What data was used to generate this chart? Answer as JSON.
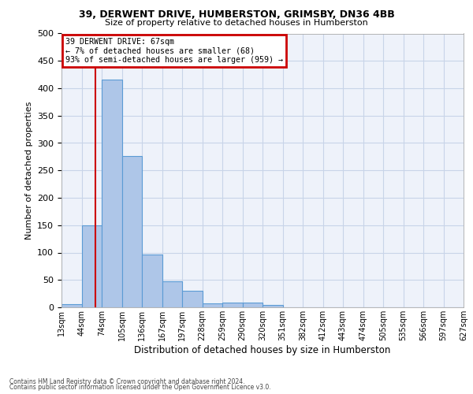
{
  "title1": "39, DERWENT DRIVE, HUMBERSTON, GRIMSBY, DN36 4BB",
  "title2": "Size of property relative to detached houses in Humberston",
  "xlabel": "Distribution of detached houses by size in Humberston",
  "ylabel": "Number of detached properties",
  "bin_labels": [
    "13sqm",
    "44sqm",
    "74sqm",
    "105sqm",
    "136sqm",
    "167sqm",
    "197sqm",
    "228sqm",
    "259sqm",
    "290sqm",
    "320sqm",
    "351sqm",
    "382sqm",
    "412sqm",
    "443sqm",
    "474sqm",
    "505sqm",
    "535sqm",
    "566sqm",
    "597sqm",
    "627sqm"
  ],
  "bar_heights": [
    6,
    149,
    416,
    276,
    96,
    48,
    30,
    7,
    9,
    8,
    5,
    0,
    0,
    0,
    0,
    0,
    0,
    0,
    0,
    0
  ],
  "bar_color": "#aec6e8",
  "bar_edgecolor": "#5b9bd5",
  "subject_line_bin": 1.67,
  "subject_line_color": "#cc0000",
  "annotation_text": "39 DERWENT DRIVE: 67sqm\n← 7% of detached houses are smaller (68)\n93% of semi-detached houses are larger (959) →",
  "annotation_box_color": "#cc0000",
  "ylim": [
    0,
    500
  ],
  "yticks": [
    0,
    50,
    100,
    150,
    200,
    250,
    300,
    350,
    400,
    450,
    500
  ],
  "grid_color": "#c8d4e8",
  "bg_color": "#eef2fa",
  "footnote1": "Contains HM Land Registry data © Crown copyright and database right 2024.",
  "footnote2": "Contains public sector information licensed under the Open Government Licence v3.0."
}
